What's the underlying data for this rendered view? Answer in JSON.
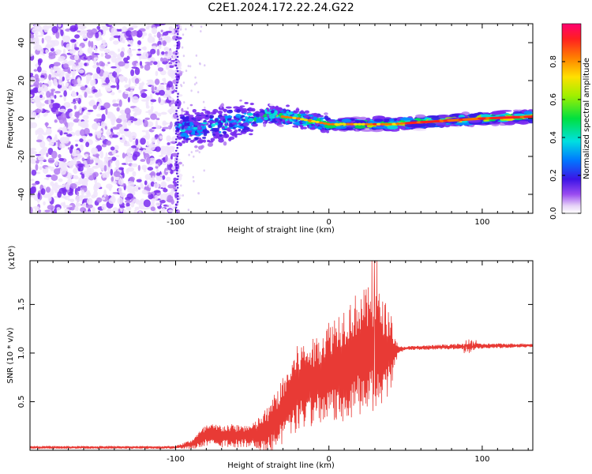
{
  "title": "C2E1.2024.172.22.24.G22",
  "chart_data": [
    {
      "type": "heatmap",
      "xlabel": "Height of straight line (km)",
      "ylabel": "Frequency (Hz)",
      "xlim": [
        -195,
        133
      ],
      "ylim": [
        -50,
        50
      ],
      "xticks": [
        -100,
        0,
        100
      ],
      "yticks": [
        -40,
        -20,
        0,
        20,
        40
      ],
      "colorbar": {
        "label": "Normalized spectral amplitude",
        "range": [
          0,
          1
        ],
        "ticks": [
          "0.0",
          "0.2",
          "0.4",
          "0.6",
          "0.8"
        ]
      },
      "ridge": {
        "x": [
          -100,
          -80,
          -60,
          -40,
          -20,
          0,
          20,
          40,
          60,
          80,
          100,
          133
        ],
        "y": [
          -6,
          -4,
          -2,
          2,
          0,
          -3,
          -3,
          -3,
          -2,
          -1,
          0,
          1
        ]
      },
      "grid": false
    },
    {
      "type": "line",
      "xlabel": "Height of straight line (km)",
      "ylabel": "SNR (10 * v/v)",
      "y_multiplier": "(x10⁴)",
      "xlim": [
        -195,
        133
      ],
      "ylim": [
        0,
        19500
      ],
      "xticks": [
        -100,
        0,
        100
      ],
      "yticks": [
        5000,
        10000,
        15000
      ],
      "ytick_labels": [
        "0.5",
        "1.0",
        "1.5"
      ],
      "color": "#e83a35",
      "envelope": {
        "x": [
          -195,
          -100,
          -90,
          -80,
          -70,
          -50,
          -40,
          -30,
          -20,
          -10,
          0,
          10,
          20,
          30,
          40,
          45,
          50,
          90,
          133
        ],
        "center": [
          300,
          300,
          600,
          1500,
          1500,
          1500,
          2000,
          4000,
          6500,
          7000,
          8000,
          9000,
          10000,
          10500,
          10000,
          10300,
          10500,
          10700,
          10800
        ],
        "amplitude": [
          150,
          150,
          500,
          1200,
          1200,
          1200,
          2500,
          3500,
          4500,
          4500,
          5500,
          6000,
          6500,
          6500,
          4500,
          400,
          200,
          300,
          200
        ]
      },
      "grid": false
    }
  ]
}
